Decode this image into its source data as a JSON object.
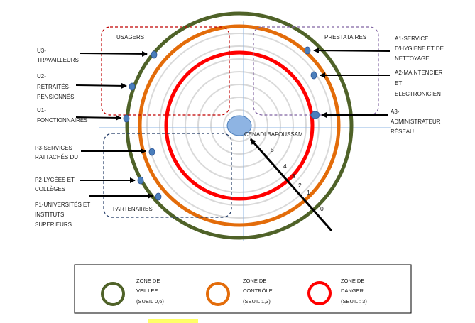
{
  "center_label": "CENADI BAFOUSSAM",
  "groups": {
    "usagers": "USAGERS",
    "prestataires": "PRESTATAIRES",
    "partenaires": "PARTENAIRES"
  },
  "actors": {
    "u3": [
      "U3-",
      "TRAVAILLEURS"
    ],
    "u2": [
      "U2-",
      "RETRAITÉS-",
      "PENSIONNÉS"
    ],
    "u1": [
      "U1-",
      "FONCTIONNAIRES"
    ],
    "p3": [
      "P3-SERVICES",
      "RATTACHÉS DU"
    ],
    "p2": [
      "P2-LYCÉES ET",
      "COLLÈGES"
    ],
    "p1": [
      "P1-UNIVERSITÉS ET",
      "INSTITUTS",
      "SUPERIEURS"
    ],
    "a1": [
      "A1-SERVICE",
      "D'HYGIENE ET DE",
      "NETTOYAGE"
    ],
    "a2": [
      "A2-MAINTENCIER",
      "ET",
      "ELECTRONICIEN"
    ],
    "a3": [
      "A3-",
      "ADMINISTRATEUR",
      "RÉSEAU"
    ]
  },
  "scale_numbers": [
    "5",
    "4",
    "3",
    "2",
    "1",
    "0"
  ],
  "legend": [
    {
      "lines": [
        "ZONE DE",
        "VEILLEE",
        "(SUEIL 0,6)"
      ],
      "color": "#4f6228"
    },
    {
      "lines": [
        "ZONE DE",
        "CONTRÔLE",
        "(SEUIL 1,3)"
      ],
      "color": "#e36c0a"
    },
    {
      "lines": [
        "ZONE DE",
        "DANGER",
        "(SEUIL : 3)"
      ],
      "color": "#ff0000"
    }
  ],
  "colors": {
    "veille": "#4f6228",
    "controle": "#e36c0a",
    "danger": "#ff0000",
    "grid_circle": "#d9d9d9",
    "marker": "#4a7ebb",
    "usagers_box": "#c00000",
    "prestataires_box": "#8064a2",
    "partenaires_box": "#1f3864",
    "center_fill": "#8eb4e3"
  }
}
